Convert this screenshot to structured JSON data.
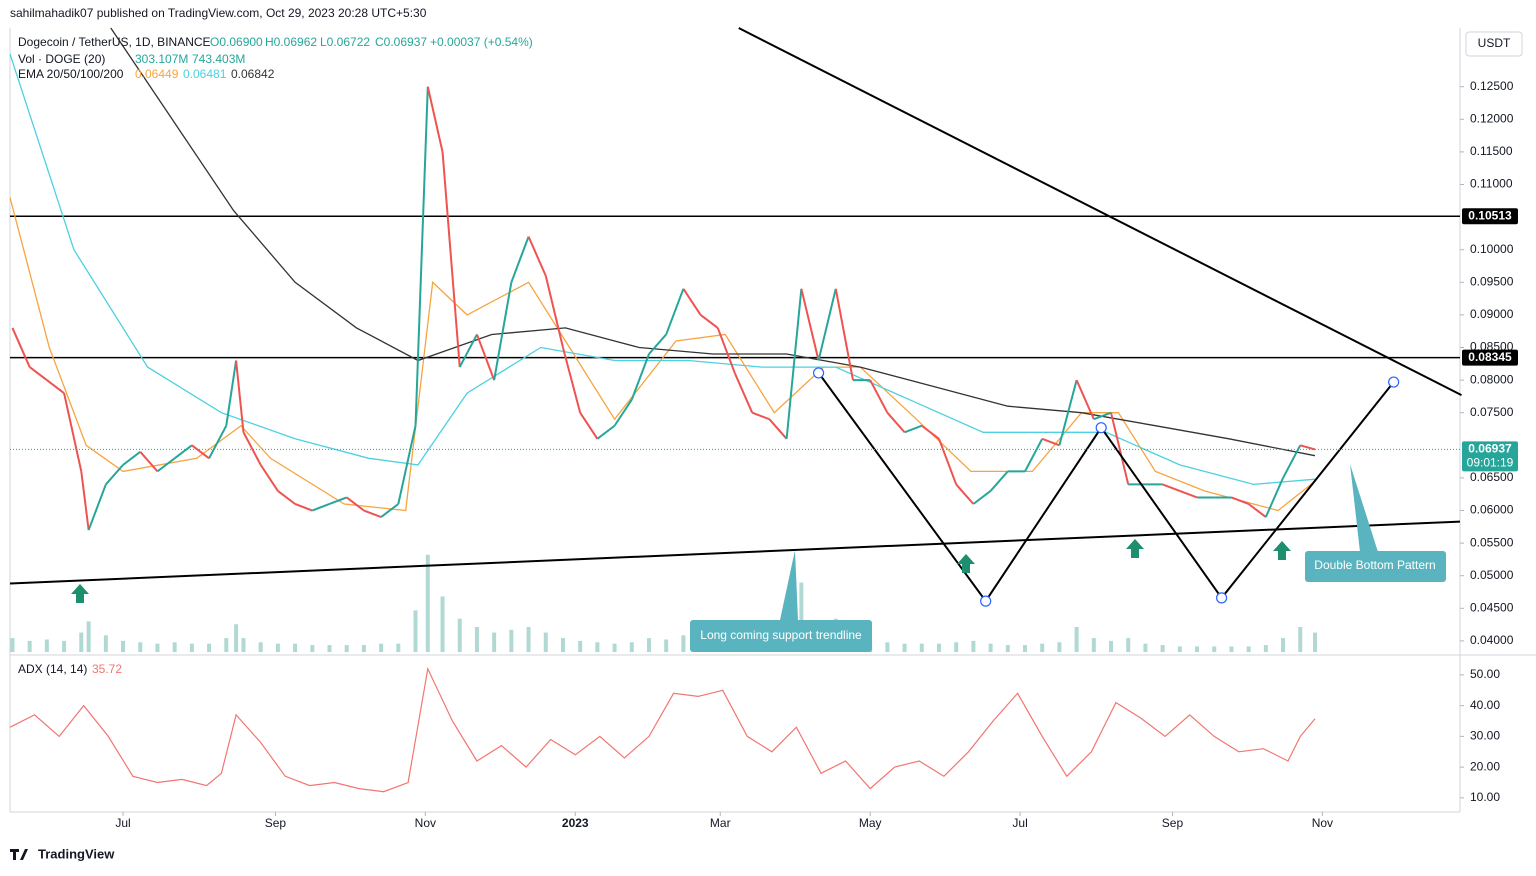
{
  "header": {
    "published": "sahilmahadik07 published on TradingView.com, Oct 29, 2023 20:28 UTC+5:30",
    "brand": "TradingView"
  },
  "chart_data": [
    {
      "type": "line",
      "title": "Dogecoin / TetherUS, 1D, BINANCE",
      "ohlc": [
        "O0.06900",
        "H0.06962",
        "L0.06722",
        "C0.06937",
        "+0.00037 (+0.54%)"
      ],
      "indicator": "EMA 20/50/100/200",
      "indicator_values": [
        0.06449,
        0.06481,
        0.06842
      ],
      "currency": "USDT",
      "countdown": "09:01:19",
      "last_price": 0.06937,
      "levels": [
        0.10513,
        0.08345
      ],
      "x": [
        -45,
        -38,
        -31,
        -24,
        -17,
        -14,
        -7,
        0,
        7,
        14,
        21,
        28,
        35,
        42,
        46,
        49,
        56,
        63,
        70,
        77,
        84,
        91,
        98,
        105,
        112,
        119,
        124,
        130,
        137,
        144,
        151,
        158,
        165,
        172,
        179,
        186,
        193,
        200,
        207,
        214,
        221,
        228,
        235,
        242,
        249,
        256,
        263,
        270,
        276,
        283,
        290,
        297,
        304,
        311,
        318,
        325,
        332,
        339,
        346,
        353,
        360,
        367,
        374,
        381,
        388,
        395,
        402,
        409,
        416,
        423,
        430,
        437,
        444,
        451,
        458,
        465,
        472,
        479,
        485
      ],
      "xlim": [
        -46,
        544
      ],
      "xticks": [
        {
          "value": 0,
          "label": "Jul"
        },
        {
          "value": 62,
          "label": "Sep"
        },
        {
          "value": 123,
          "label": "Nov"
        },
        {
          "value": 184,
          "label": "2023"
        },
        {
          "value": 243,
          "label": "Mar"
        },
        {
          "value": 304,
          "label": "May"
        },
        {
          "value": 365,
          "label": "Jul"
        },
        {
          "value": 427,
          "label": "Sep"
        },
        {
          "value": 488,
          "label": "Nov"
        }
      ],
      "ylim": [
        0.0383,
        0.134
      ],
      "yticks": [
        {
          "value": 0.04,
          "label": "0.04000"
        },
        {
          "value": 0.045,
          "label": "0.04500"
        },
        {
          "value": 0.05,
          "label": "0.05000"
        },
        {
          "value": 0.055,
          "label": "0.05500"
        },
        {
          "value": 0.06,
          "label": "0.06000"
        },
        {
          "value": 0.065,
          "label": "0.06500"
        },
        {
          "value": 0.075,
          "label": "0.07500"
        },
        {
          "value": 0.08,
          "label": "0.08000"
        },
        {
          "value": 0.085,
          "label": "0.08500"
        },
        {
          "value": 0.09,
          "label": "0.09000"
        },
        {
          "value": 0.095,
          "label": "0.09500"
        },
        {
          "value": 0.1,
          "label": "0.10000"
        },
        {
          "value": 0.11,
          "label": "0.11000"
        },
        {
          "value": 0.115,
          "label": "0.11500"
        },
        {
          "value": 0.12,
          "label": "0.12000"
        },
        {
          "value": 0.125,
          "label": "0.12500"
        }
      ],
      "series": [
        {
          "color": "#26a69a",
          "values": [
            0.088,
            0.082,
            0.08,
            0.078,
            0.066,
            0.057,
            0.064,
            0.067,
            0.069,
            0.066,
            0.068,
            0.07,
            0.068,
            0.073,
            0.083,
            0.072,
            0.067,
            0.063,
            0.061,
            0.06,
            0.061,
            0.062,
            0.06,
            0.059,
            0.061,
            0.073,
            0.125,
            0.115,
            0.082,
            0.087,
            0.08,
            0.095,
            0.102,
            0.096,
            0.085,
            0.075,
            0.071,
            0.073,
            0.077,
            0.084,
            0.087,
            0.094,
            0.09,
            0.088,
            0.081,
            0.075,
            0.074,
            0.071,
            0.094,
            0.083,
            0.094,
            0.08,
            0.08,
            0.075,
            0.072,
            0.073,
            0.071,
            0.064,
            0.061,
            0.063,
            0.066,
            0.066,
            0.071,
            0.07,
            0.08,
            0.074,
            0.075,
            0.064,
            0.064,
            0.064,
            0.063,
            0.062,
            0.062,
            0.062,
            0.061,
            0.059,
            0.065,
            0.07,
            0.06937
          ]
        },
        {
          "color": "#f7a440",
          "x": [
            -46,
            -30,
            -15,
            0,
            30,
            48,
            60,
            90,
            115,
            126,
            140,
            165,
            185,
            200,
            225,
            245,
            265,
            285,
            300,
            320,
            345,
            370,
            390,
            405,
            420,
            440,
            470,
            485
          ],
          "values": [
            0.108,
            0.085,
            0.07,
            0.066,
            0.068,
            0.073,
            0.068,
            0.061,
            0.06,
            0.095,
            0.09,
            0.095,
            0.083,
            0.074,
            0.086,
            0.087,
            0.075,
            0.082,
            0.082,
            0.075,
            0.066,
            0.066,
            0.075,
            0.075,
            0.066,
            0.063,
            0.06,
            0.0645
          ]
        },
        {
          "color": "#4dd0e1",
          "x": [
            -46,
            -20,
            10,
            40,
            70,
            100,
            120,
            140,
            170,
            200,
            230,
            260,
            290,
            320,
            350,
            380,
            400,
            430,
            460,
            485
          ],
          "values": [
            0.13,
            0.1,
            0.082,
            0.075,
            0.071,
            0.068,
            0.067,
            0.078,
            0.085,
            0.083,
            0.083,
            0.082,
            0.082,
            0.077,
            0.072,
            0.072,
            0.072,
            0.067,
            0.064,
            0.0648
          ]
        },
        {
          "color": "#333333",
          "x": [
            -5,
            20,
            45,
            70,
            95,
            120,
            150,
            180,
            210,
            240,
            270,
            300,
            330,
            360,
            390,
            420,
            450,
            485
          ],
          "values": [
            0.134,
            0.12,
            0.106,
            0.095,
            0.088,
            0.083,
            0.087,
            0.088,
            0.085,
            0.084,
            0.084,
            0.082,
            0.079,
            0.076,
            0.075,
            0.073,
            0.071,
            0.0684
          ]
        }
      ],
      "trendlines": [
        {
          "x": [
            -46,
            544
          ],
          "values": [
            0.0488,
            0.0583
          ]
        },
        {
          "x": [
            250.5,
            544.6
          ],
          "values": [
            0.134,
            0.0777
          ]
        },
        {
          "x": [
            283,
            351,
            398,
            447,
            517
          ],
          "values": [
            0.0811,
            0.0461,
            0.0727,
            0.0466,
            0.0797
          ],
          "markers": true
        }
      ],
      "annotations": [
        "Long coming support trendline",
        "Double Bottom Pattern"
      ]
    },
    {
      "type": "bar",
      "title": "Vol · DOGE (20)",
      "legend_values": [
        "303.107M",
        "743.403M"
      ],
      "x": [
        -45,
        -38,
        -31,
        -24,
        -17,
        -14,
        -7,
        0,
        7,
        14,
        21,
        28,
        35,
        42,
        46,
        49,
        56,
        63,
        70,
        77,
        84,
        91,
        98,
        105,
        112,
        119,
        124,
        130,
        137,
        144,
        151,
        158,
        165,
        172,
        179,
        186,
        193,
        200,
        207,
        214,
        221,
        228,
        235,
        242,
        249,
        256,
        263,
        270,
        276,
        283,
        290,
        297,
        304,
        311,
        318,
        325,
        332,
        339,
        346,
        353,
        360,
        367,
        374,
        381,
        388,
        395,
        402,
        409,
        416,
        423,
        430,
        437,
        444,
        451,
        458,
        465,
        472,
        479,
        485
      ],
      "values": [
        500,
        400,
        450,
        400,
        700,
        1100,
        600,
        400,
        350,
        300,
        350,
        300,
        300,
        500,
        1000,
        500,
        350,
        300,
        300,
        250,
        250,
        250,
        250,
        300,
        300,
        1500,
        3500,
        2000,
        1200,
        900,
        700,
        800,
        900,
        700,
        500,
        400,
        350,
        300,
        350,
        500,
        450,
        600,
        500,
        400,
        400,
        350,
        350,
        300,
        2500,
        900,
        1200,
        600,
        400,
        350,
        300,
        300,
        300,
        350,
        400,
        300,
        250,
        250,
        300,
        350,
        900,
        500,
        400,
        500,
        300,
        250,
        200,
        200,
        200,
        200,
        200,
        250,
        500,
        900,
        700
      ],
      "xlim": [
        -46,
        544
      ],
      "ylim": [
        0,
        3600
      ],
      "color": "#9ccfc9"
    },
    {
      "type": "line",
      "title": "ADX (14, 14)",
      "last_value": 35.72,
      "color": "#f27570",
      "x": [
        -46,
        -36,
        -26,
        -16,
        -6,
        4,
        14,
        24,
        34,
        40,
        46,
        56,
        66,
        76,
        86,
        96,
        106,
        116,
        124,
        134,
        144,
        154,
        164,
        174,
        184,
        194,
        204,
        214,
        224,
        234,
        244,
        254,
        264,
        274,
        284,
        294,
        304,
        314,
        324,
        334,
        344,
        354,
        364,
        374,
        384,
        394,
        404,
        414,
        424,
        434,
        444,
        454,
        464,
        474,
        479,
        485
      ],
      "values": [
        33,
        37,
        30,
        40,
        30,
        17,
        15,
        16,
        14,
        18,
        37,
        28,
        17,
        14,
        15,
        13,
        12,
        15,
        52,
        35,
        22,
        27,
        20,
        29,
        24,
        30,
        23,
        30,
        44,
        43,
        45,
        30,
        25,
        33,
        18,
        22,
        13,
        20,
        22,
        17,
        25,
        35,
        44,
        30,
        17,
        25,
        41,
        36,
        30,
        37,
        30,
        25,
        26,
        22,
        30,
        35.72
      ],
      "xlim": [
        -46,
        544
      ],
      "ylim": [
        5.4,
        55.5
      ],
      "yticks": [
        {
          "value": 10,
          "label": "10.00"
        },
        {
          "value": 20,
          "label": "20.00"
        },
        {
          "value": 30,
          "label": "30.00"
        },
        {
          "value": 40,
          "label": "40.00"
        },
        {
          "value": 50,
          "label": "50.00"
        }
      ]
    }
  ]
}
